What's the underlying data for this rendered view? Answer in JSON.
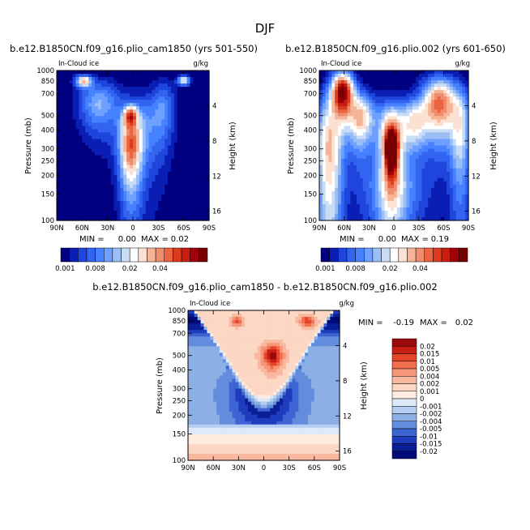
{
  "figure": {
    "title": "DJF",
    "variable": "In-Cloud ice",
    "units": "g/kg",
    "pressure_label": "Pressure (mb)",
    "height_label": "Height (km)"
  },
  "chart_data": [
    {
      "type": "heatmap",
      "title": "b.e12.B1850CN.f09_g16.plio_cam1850 (yrs 501-550)",
      "left_label": "In-Cloud ice",
      "right_label": "g/kg",
      "ylabel": "Pressure (mb)",
      "y2label": "Height (km)",
      "x_ticks": [
        "90N",
        "60N",
        "30N",
        "0",
        "30S",
        "60S",
        "90S"
      ],
      "y_ticks": [
        1000,
        850,
        700,
        500,
        400,
        300,
        250,
        200,
        150,
        100
      ],
      "y2_ticks": [
        4,
        8,
        12,
        16
      ],
      "min_label": "MIN =",
      "min": "0.00",
      "max_label": "MAX =",
      "max": "0.02",
      "colorbar_labels": [
        "0.001",
        "0.008",
        "0.02",
        "0.04"
      ],
      "colors": [
        "#000080",
        "#0a1eb4",
        "#1e46dc",
        "#3264f0",
        "#4682ff",
        "#6ea0ff",
        "#9bbef5",
        "#c8dcf5",
        "#ffffff",
        "#fbe1d2",
        "#f5b496",
        "#f08c6e",
        "#eb6441",
        "#dc3c1e",
        "#c81e0f",
        "#a0000a",
        "#780000"
      ],
      "blobs": [
        {
          "lat": 3,
          "p": 500,
          "sx": 8,
          "sy": 75,
          "amp": 0.55
        },
        {
          "lat": 3,
          "p": 300,
          "sx": 12,
          "sy": 160,
          "amp": 0.5
        },
        {
          "lat": -5,
          "p": 400,
          "sx": 22,
          "sy": 240,
          "amp": 0.3
        },
        {
          "lat": 58,
          "p": 850,
          "sx": 9,
          "sy": 70,
          "amp": 0.55
        },
        {
          "lat": 40,
          "p": 600,
          "sx": 22,
          "sy": 220,
          "amp": 0.3
        },
        {
          "lat": -60,
          "p": 860,
          "sx": 7,
          "sy": 60,
          "amp": 0.45
        },
        {
          "lat": -35,
          "p": 550,
          "sx": 14,
          "sy": 260,
          "amp": 0.22
        }
      ]
    },
    {
      "type": "heatmap",
      "title": "b.e12.B1850CN.f09_g16.plio.002 (yrs 601-650)",
      "left_label": "In-Cloud ice",
      "right_label": "g/kg",
      "ylabel": "Pressure (mb)",
      "y2label": "Height (km)",
      "x_ticks": [
        "90N",
        "60N",
        "30N",
        "0",
        "30S",
        "60S",
        "90S"
      ],
      "y_ticks": [
        1000,
        850,
        700,
        500,
        400,
        300,
        250,
        200,
        150,
        100
      ],
      "y2_ticks": [
        4,
        8,
        12,
        16
      ],
      "min_label": "MIN =",
      "min": "0.00",
      "max_label": "MAX =",
      "max": "0.19",
      "colorbar_labels": [
        "0.001",
        "0.008",
        "0.02",
        "0.04"
      ],
      "colors": [
        "#000080",
        "#0a1eb4",
        "#1e46dc",
        "#3264f0",
        "#4682ff",
        "#6ea0ff",
        "#9bbef5",
        "#c8dcf5",
        "#ffffff",
        "#fbe1d2",
        "#f5b496",
        "#f08c6e",
        "#eb6441",
        "#dc3c1e",
        "#c81e0f",
        "#a0000a",
        "#780000"
      ],
      "blobs": [
        {
          "lat": 3,
          "p": 300,
          "sx": 7,
          "sy": 90,
          "amp": 0.95
        },
        {
          "lat": 3,
          "p": 350,
          "sx": 16,
          "sy": 230,
          "amp": 0.65
        },
        {
          "lat": 62,
          "p": 720,
          "sx": 13,
          "sy": 230,
          "amp": 0.95
        },
        {
          "lat": 78,
          "p": 300,
          "sx": 16,
          "sy": 320,
          "amp": 0.55
        },
        {
          "lat": 40,
          "p": 480,
          "sx": 16,
          "sy": 200,
          "amp": 0.55
        },
        {
          "lat": -55,
          "p": 600,
          "sx": 20,
          "sy": 260,
          "amp": 0.7
        },
        {
          "lat": -80,
          "p": 400,
          "sx": 12,
          "sy": 300,
          "amp": 0.4
        },
        {
          "lat": -25,
          "p": 450,
          "sx": 16,
          "sy": 170,
          "amp": 0.45
        },
        {
          "lat": 0,
          "p": 150,
          "sx": 35,
          "sy": 90,
          "amp": 0.25
        }
      ]
    },
    {
      "type": "heatmap",
      "title": "b.e12.B1850CN.f09_g16.plio_cam1850 - b.e12.B1850CN.f09_g16.plio.002",
      "left_label": "In-Cloud ice",
      "right_label": "g/kg",
      "ylabel": "Pressure (mb)",
      "y2label": "Height (km)",
      "x_ticks": [
        "90N",
        "60N",
        "30N",
        "0",
        "30S",
        "60S",
        "90S"
      ],
      "y_ticks": [
        1000,
        850,
        700,
        500,
        400,
        300,
        250,
        200,
        150,
        100
      ],
      "y2_ticks": [
        4,
        8,
        12,
        16
      ],
      "min_label": "MIN =",
      "min": "-0.19",
      "max_label": "MAX =",
      "max": "0.02",
      "colorbar_labels": [
        "0.02",
        "0.015",
        "0.01",
        "0.005",
        "0.004",
        "0.002",
        "0.001",
        "0",
        "-0.001",
        "-0.002",
        "-0.004",
        "-0.005",
        "-0.01",
        "-0.015",
        "-0.02"
      ],
      "colors": [
        "#9b0a0a",
        "#c81e14",
        "#e64628",
        "#f06e4b",
        "#f5967a",
        "#f8b9a0",
        "#fbd7c4",
        "#ffebe0",
        "#dce9f8",
        "#b4cdf0",
        "#8cafe6",
        "#648cdc",
        "#3c64d2",
        "#1e3cbe",
        "#0a1e96",
        "#000a78"
      ]
    }
  ]
}
